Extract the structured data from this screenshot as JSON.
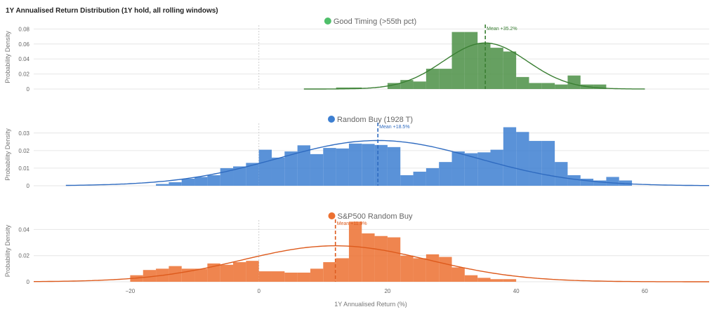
{
  "title": "1Y Annualised Return Distribution (1Y hold, all rolling windows)",
  "chart_data": [
    {
      "type": "histogram",
      "title": "Good Timing (>55th pct)",
      "color": "#4b8f45",
      "line_color": "#3a7f33",
      "dot_color": "#4fbf6a",
      "ylabel": "Probability Density",
      "ylim": [
        0,
        0.085
      ],
      "yticks": [
        0,
        0.02,
        0.04,
        0.06,
        0.08
      ],
      "ytick_labels": [
        "0",
        "0.02",
        "0.04",
        "0.06",
        "0.08"
      ],
      "bin_width": 2,
      "bins": [
        [
          12,
          0.002
        ],
        [
          14,
          0.002
        ],
        [
          20,
          0.008
        ],
        [
          22,
          0.012
        ],
        [
          24,
          0.01
        ],
        [
          26,
          0.027
        ],
        [
          28,
          0.027
        ],
        [
          30,
          0.076
        ],
        [
          32,
          0.076
        ],
        [
          34,
          0.061
        ],
        [
          36,
          0.055
        ],
        [
          38,
          0.05
        ],
        [
          40,
          0.016
        ],
        [
          42,
          0.008
        ],
        [
          44,
          0.008
        ],
        [
          46,
          0.006
        ],
        [
          48,
          0.018
        ],
        [
          50,
          0.006
        ],
        [
          52,
          0.006
        ]
      ],
      "mean": 35.2,
      "mean_label": "Mean +35.2%",
      "std": 6.5,
      "curve_range": [
        7,
        60
      ]
    },
    {
      "type": "histogram",
      "title": "Random Buy (1928 T)",
      "color": "#3d7fd1",
      "line_color": "#2f6bc0",
      "dot_color": "#3d7fd1",
      "ylabel": "Probability Density",
      "ylim": [
        0,
        0.0355
      ],
      "yticks": [
        0,
        0.01,
        0.02,
        0.03
      ],
      "ytick_labels": [
        "0",
        "0.01",
        "0.02",
        "0.03"
      ],
      "bin_width": 2,
      "bins": [
        [
          -16,
          0.001
        ],
        [
          -14,
          0.002
        ],
        [
          -12,
          0.004
        ],
        [
          -10,
          0.005
        ],
        [
          -8,
          0.006
        ],
        [
          -6,
          0.01
        ],
        [
          -4,
          0.011
        ],
        [
          -2,
          0.013
        ],
        [
          0,
          0.0205
        ],
        [
          2,
          0.016
        ],
        [
          4,
          0.0195
        ],
        [
          6,
          0.023
        ],
        [
          8,
          0.018
        ],
        [
          10,
          0.0215
        ],
        [
          12,
          0.0212
        ],
        [
          14,
          0.024
        ],
        [
          16,
          0.0238
        ],
        [
          18,
          0.0232
        ],
        [
          20,
          0.022
        ],
        [
          22,
          0.006
        ],
        [
          24,
          0.008
        ],
        [
          26,
          0.01
        ],
        [
          28,
          0.0135
        ],
        [
          30,
          0.0195
        ],
        [
          32,
          0.0185
        ],
        [
          34,
          0.019
        ],
        [
          36,
          0.0205
        ],
        [
          38,
          0.0333
        ],
        [
          40,
          0.0306
        ],
        [
          42,
          0.0255
        ],
        [
          44,
          0.0255
        ],
        [
          46,
          0.0135
        ],
        [
          48,
          0.006
        ],
        [
          50,
          0.004
        ],
        [
          52,
          0.003
        ],
        [
          54,
          0.005
        ],
        [
          56,
          0.003
        ]
      ],
      "mean": 18.5,
      "mean_label": "Mean +18.5%",
      "std": 15.5,
      "curve_range": [
        -30,
        70
      ]
    },
    {
      "type": "histogram",
      "title": "S&P500 Random Buy",
      "color": "#ec7030",
      "line_color": "#dd5a1c",
      "dot_color": "#ec7030",
      "ylabel": "Probability Density",
      "ylim": [
        0,
        0.0472
      ],
      "yticks": [
        0,
        0.02,
        0.04
      ],
      "ytick_labels": [
        "0",
        "0.02",
        "0.04"
      ],
      "xlabel": "1Y Annualised Return (%)",
      "xticks": [
        -20,
        0,
        20,
        40,
        60
      ],
      "xtick_labels": [
        "−20",
        "0",
        "20",
        "40",
        "60"
      ],
      "bin_width": 2,
      "bins": [
        [
          -20,
          0.005
        ],
        [
          -18,
          0.009
        ],
        [
          -16,
          0.01
        ],
        [
          -14,
          0.012
        ],
        [
          -12,
          0.01
        ],
        [
          -10,
          0.01
        ],
        [
          -8,
          0.014
        ],
        [
          -6,
          0.013
        ],
        [
          -4,
          0.015
        ],
        [
          -2,
          0.016
        ],
        [
          0,
          0.008
        ],
        [
          2,
          0.008
        ],
        [
          4,
          0.007
        ],
        [
          6,
          0.007
        ],
        [
          8,
          0.01
        ],
        [
          10,
          0.015
        ],
        [
          12,
          0.018
        ],
        [
          14,
          0.046
        ],
        [
          16,
          0.037
        ],
        [
          18,
          0.035
        ],
        [
          20,
          0.034
        ],
        [
          22,
          0.02
        ],
        [
          24,
          0.018
        ],
        [
          26,
          0.021
        ],
        [
          28,
          0.019
        ],
        [
          30,
          0.011
        ],
        [
          32,
          0.005
        ],
        [
          34,
          0.003
        ],
        [
          36,
          0.002
        ],
        [
          38,
          0.002
        ]
      ],
      "mean": 11.9,
      "mean_label": "Mean +11.9%",
      "std": 14.5,
      "curve_range": [
        -35,
        70
      ]
    }
  ]
}
